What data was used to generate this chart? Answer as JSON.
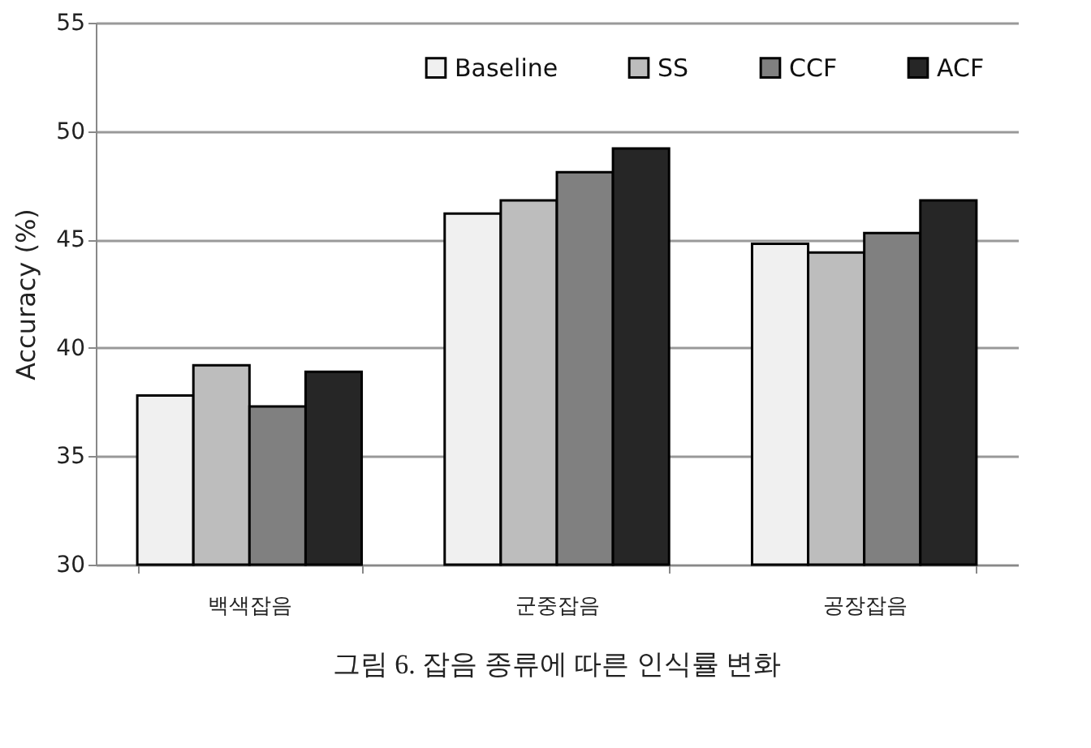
{
  "chart_data": {
    "type": "bar",
    "ylabel": "Accuracy (%)",
    "categories": [
      "백색잡음",
      "군중잡음",
      "공장잡음"
    ],
    "series": [
      {
        "name": "Baseline",
        "color": "#f0f0f0",
        "values": [
          37.8,
          46.2,
          44.8
        ]
      },
      {
        "name": "SS",
        "color": "#bdbdbd",
        "values": [
          39.2,
          46.8,
          44.4
        ]
      },
      {
        "name": "CCF",
        "color": "#808080",
        "values": [
          37.3,
          48.1,
          45.3
        ]
      },
      {
        "name": "ACF",
        "color": "#262626",
        "values": [
          38.9,
          49.2,
          46.8
        ]
      }
    ],
    "ylim": [
      30,
      55
    ],
    "yticks": [
      30,
      35,
      40,
      45,
      50,
      55
    ],
    "grid": "y",
    "legend": "top right",
    "annotations": [
      "그림 6. 잡음 종류에 따른 인식률 변화"
    ]
  }
}
